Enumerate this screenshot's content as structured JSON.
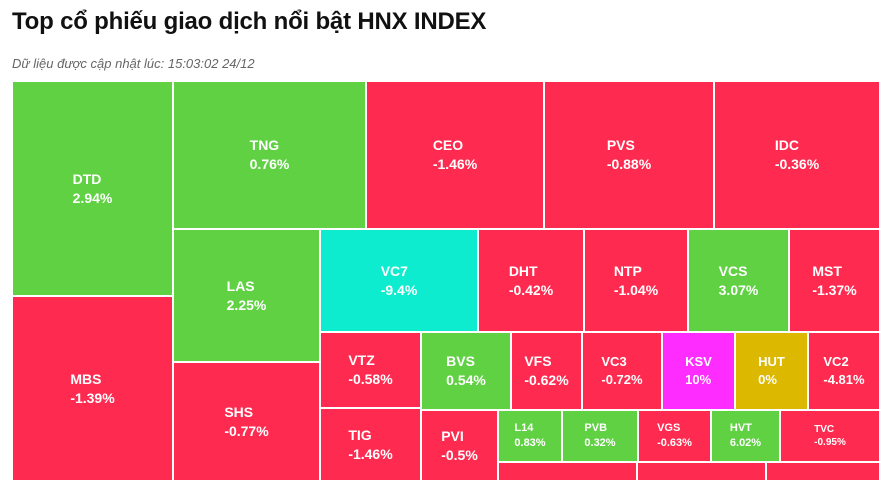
{
  "title": "Top cổ phiếu giao dịch nổi bật HNX INDEX",
  "subtitle": "Dữ liệu được cập nhật lúc: 15:03:02 24/12",
  "colors": {
    "up": "#5fd143",
    "down": "#ff2a4f",
    "ceiling": "#ff2cff",
    "floor": "#0deccf",
    "reference": "#dcb800"
  },
  "chart_data": {
    "type": "treemap",
    "items": [
      {
        "symbol": "DTD",
        "change": "2.94%",
        "status": "up"
      },
      {
        "symbol": "MBS",
        "change": "-1.39%",
        "status": "down"
      },
      {
        "symbol": "TNG",
        "change": "0.76%",
        "status": "up"
      },
      {
        "symbol": "LAS",
        "change": "2.25%",
        "status": "up"
      },
      {
        "symbol": "SHS",
        "change": "-0.77%",
        "status": "down"
      },
      {
        "symbol": "CEO",
        "change": "-1.46%",
        "status": "down"
      },
      {
        "symbol": "PVS",
        "change": "-0.88%",
        "status": "down"
      },
      {
        "symbol": "IDC",
        "change": "-0.36%",
        "status": "down"
      },
      {
        "symbol": "VC7",
        "change": "-9.4%",
        "status": "floor"
      },
      {
        "symbol": "DHT",
        "change": "-0.42%",
        "status": "down"
      },
      {
        "symbol": "NTP",
        "change": "-1.04%",
        "status": "down"
      },
      {
        "symbol": "VCS",
        "change": "3.07%",
        "status": "up"
      },
      {
        "symbol": "MST",
        "change": "-1.37%",
        "status": "down"
      },
      {
        "symbol": "VTZ",
        "change": "-0.58%",
        "status": "down"
      },
      {
        "symbol": "TIG",
        "change": "-1.46%",
        "status": "down"
      },
      {
        "symbol": "BVS",
        "change": "0.54%",
        "status": "up"
      },
      {
        "symbol": "PVI",
        "change": "-0.5%",
        "status": "down"
      },
      {
        "symbol": "VFS",
        "change": "-0.62%",
        "status": "down"
      },
      {
        "symbol": "VC3",
        "change": "-0.72%",
        "status": "down"
      },
      {
        "symbol": "KSV",
        "change": "10%",
        "status": "ceiling"
      },
      {
        "symbol": "HUT",
        "change": "0%",
        "status": "reference"
      },
      {
        "symbol": "VC2",
        "change": "-4.81%",
        "status": "down"
      },
      {
        "symbol": "L14",
        "change": "0.83%",
        "status": "up"
      },
      {
        "symbol": "PVB",
        "change": "0.32%",
        "status": "up"
      },
      {
        "symbol": "VGS",
        "change": "-0.63%",
        "status": "down"
      },
      {
        "symbol": "HVT",
        "change": "6.02%",
        "status": "up"
      },
      {
        "symbol": "TVC",
        "change": "-0.95%",
        "status": "down"
      },
      {
        "symbol": "",
        "change": "",
        "status": "down"
      },
      {
        "symbol": "",
        "change": "",
        "status": "down"
      },
      {
        "symbol": "",
        "change": "",
        "status": "down"
      }
    ]
  }
}
